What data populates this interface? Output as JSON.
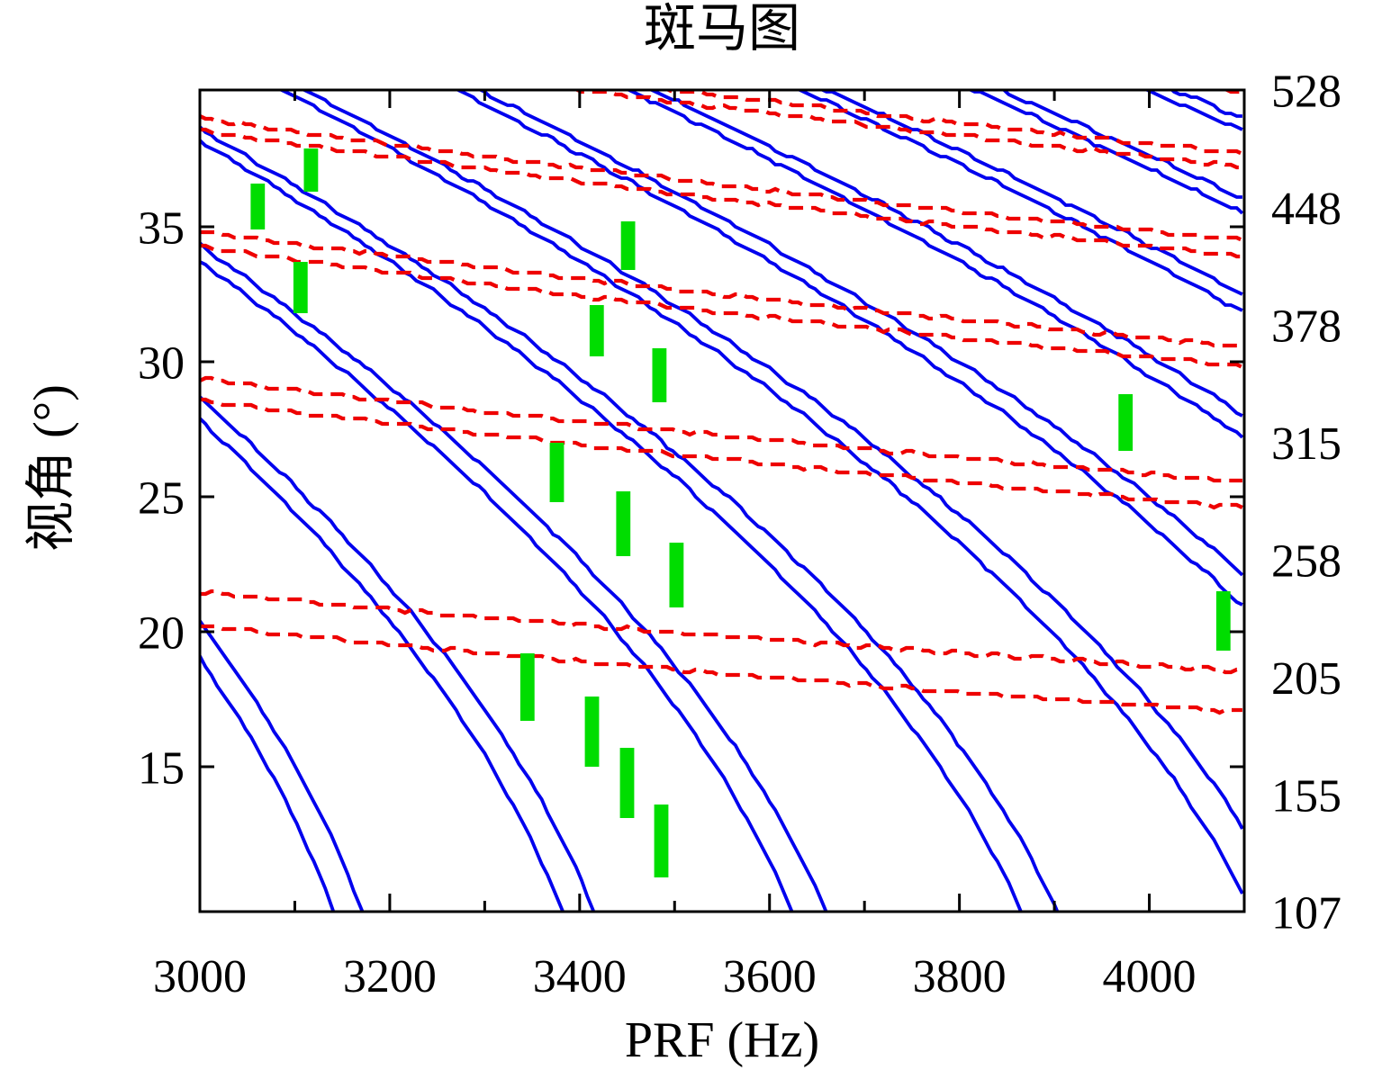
{
  "title": "斑马图",
  "axes": {
    "x": {
      "label": "PRF (Hz)",
      "min": 3000,
      "max": 4100,
      "minor_tick_step": 100,
      "major_tick_values": [
        3000,
        3200,
        3400,
        3600,
        3800,
        4000
      ],
      "major_tick_labels": [
        "3000",
        "3200",
        "3400",
        "3600",
        "3800",
        "4000"
      ]
    },
    "y_left": {
      "label": "视角 (°)",
      "min": 9.63,
      "max": 40.07,
      "tick_values": [
        15,
        20,
        25,
        30,
        35
      ],
      "tick_labels": [
        "15",
        "20",
        "25",
        "30",
        "35"
      ]
    },
    "y_right": {
      "labels": [
        "528",
        "448",
        "378",
        "315",
        "258",
        "205",
        "155",
        "107"
      ]
    }
  },
  "chart_data": {
    "type": "line",
    "title": "斑马图",
    "xlabel": "PRF (Hz)",
    "ylabel": "视角 (°)",
    "xlim": [
      3000,
      4100
    ],
    "ylim": [
      9.63,
      40.07
    ],
    "grid": false,
    "legend": "none",
    "model": {
      "earth_radius_km": 6371,
      "platform_altitude_km": 605,
      "half_light_speed_km_per_s": 149896.229,
      "band_width_km": 6.0
    },
    "series": [
      {
        "id": "transmit-blind-zones",
        "style": "solid",
        "color": "#0000ee",
        "line_width": 3.8,
        "pulse_indices": [
          13,
          14,
          15,
          16,
          17,
          18,
          19,
          20,
          21,
          22
        ],
        "rule": "pairs of curves where 2*R(theta)/c * PRF = k and the band 6 km below"
      },
      {
        "id": "nadir-interference",
        "style": "dashed",
        "color": "#ee0000",
        "line_width": 4.3,
        "dash": [
          16,
          9
        ],
        "pulse_indices": [
          1,
          2,
          3,
          4,
          5,
          6
        ],
        "rule": "pairs of curves where 2*(R(theta)-h)/c * PRF = m and the band 6 km below"
      }
    ],
    "green_markers": {
      "id": "selected-prf-windows",
      "color": "#00dd00",
      "width_hz": 15,
      "points": [
        {
          "prf": 3117,
          "theta_min": 36.3,
          "theta_max": 37.9
        },
        {
          "prf": 3061,
          "theta_min": 34.9,
          "theta_max": 36.6
        },
        {
          "prf": 3106,
          "theta_min": 31.8,
          "theta_max": 33.7
        },
        {
          "prf": 3451,
          "theta_min": 33.4,
          "theta_max": 35.2
        },
        {
          "prf": 3418,
          "theta_min": 30.2,
          "theta_max": 32.1
        },
        {
          "prf": 3484,
          "theta_min": 28.5,
          "theta_max": 30.5
        },
        {
          "prf": 3376,
          "theta_min": 24.8,
          "theta_max": 27.0
        },
        {
          "prf": 3446,
          "theta_min": 22.8,
          "theta_max": 25.2
        },
        {
          "prf": 3502,
          "theta_min": 20.9,
          "theta_max": 23.3
        },
        {
          "prf": 3345,
          "theta_min": 16.7,
          "theta_max": 19.2
        },
        {
          "prf": 3413,
          "theta_min": 15.0,
          "theta_max": 17.6
        },
        {
          "prf": 3450,
          "theta_min": 13.1,
          "theta_max": 15.7
        },
        {
          "prf": 3486,
          "theta_min": 10.9,
          "theta_max": 13.6
        },
        {
          "prf": 3975,
          "theta_min": 26.7,
          "theta_max": 28.8
        },
        {
          "prf": 4078,
          "theta_min": 19.3,
          "theta_max": 21.5
        }
      ]
    }
  }
}
